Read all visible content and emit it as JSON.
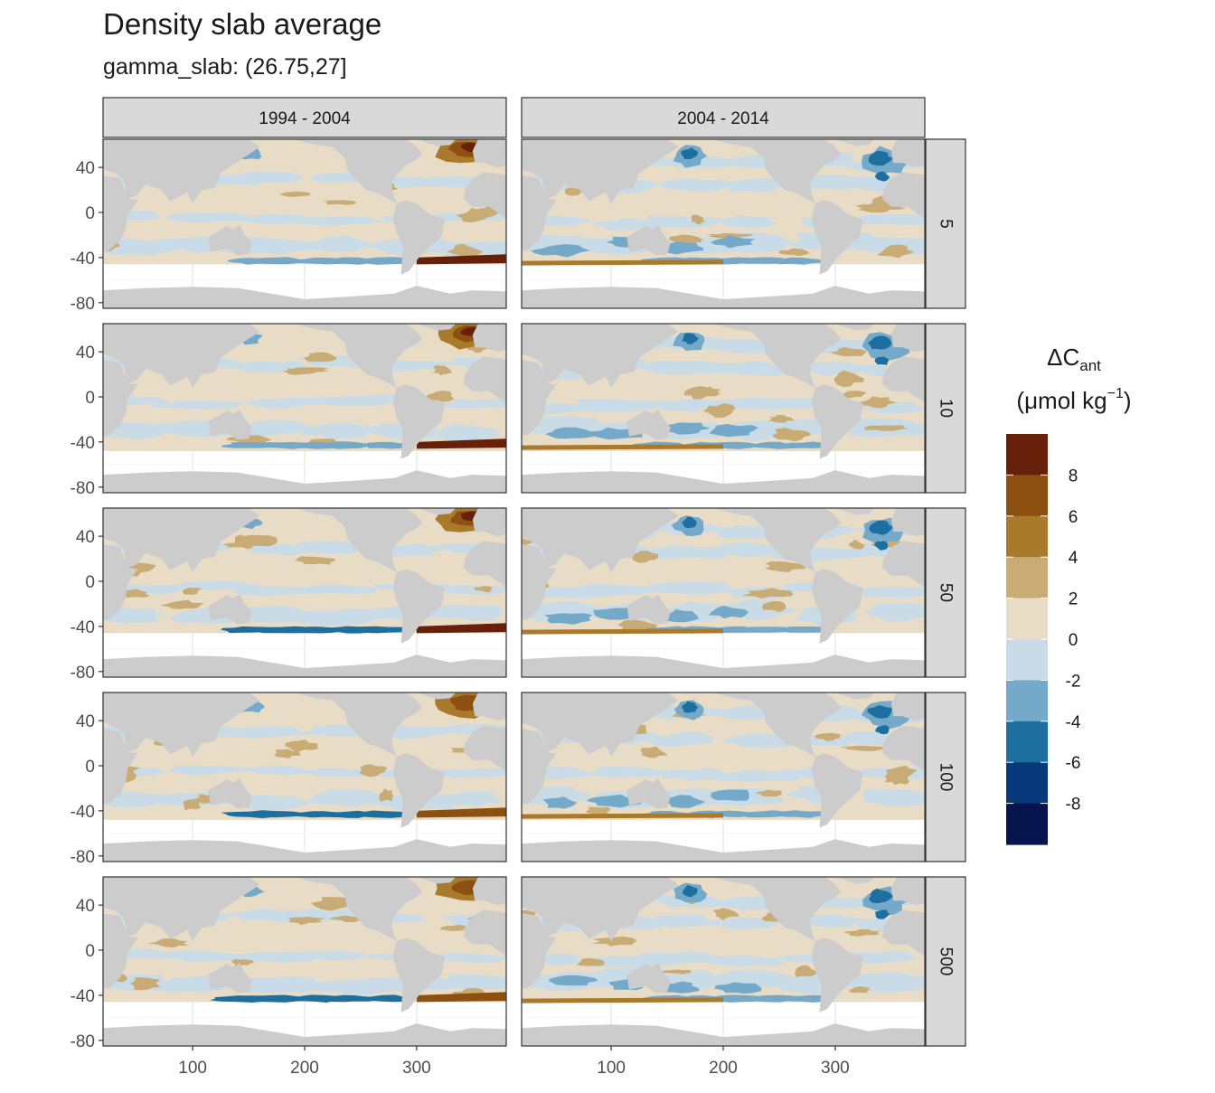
{
  "chart_data": {
    "type": "heatmap",
    "title": "Density slab average",
    "subtitle": "gamma_slab: (26.75,27]",
    "xlabel": "",
    "ylabel": "",
    "xlim": [
      20,
      380
    ],
    "ylim": [
      -85,
      65
    ],
    "x_ticks": [
      "100",
      "200",
      "300"
    ],
    "y_ticks": [
      "40",
      "0",
      "-40",
      "-80"
    ],
    "x_tick_values": [
      100,
      200,
      300
    ],
    "y_tick_values": [
      40,
      0,
      -40,
      -80
    ],
    "facet_columns": [
      "1994 - 2004",
      "2004 - 2014"
    ],
    "facet_rows": [
      "5",
      "10",
      "50",
      "100",
      "500"
    ],
    "legend": {
      "title_main": "ΔC",
      "title_sub": "ant",
      "title_unit": "(μmol kg",
      "title_exp": "−1",
      "title_close": ")",
      "placement": "right",
      "labels": [
        "8",
        "6",
        "4",
        "2",
        "0",
        "-2",
        "-4",
        "-6",
        "-8"
      ],
      "colors": [
        "#67200a",
        "#8c5110",
        "#a97a2c",
        "#c8ab75",
        "#e8dcc6",
        "#c9dbe7",
        "#74a9c9",
        "#1d6fa0",
        "#08397a",
        "#08144d"
      ]
    },
    "land_color": "#cccccc",
    "grid": true
  }
}
